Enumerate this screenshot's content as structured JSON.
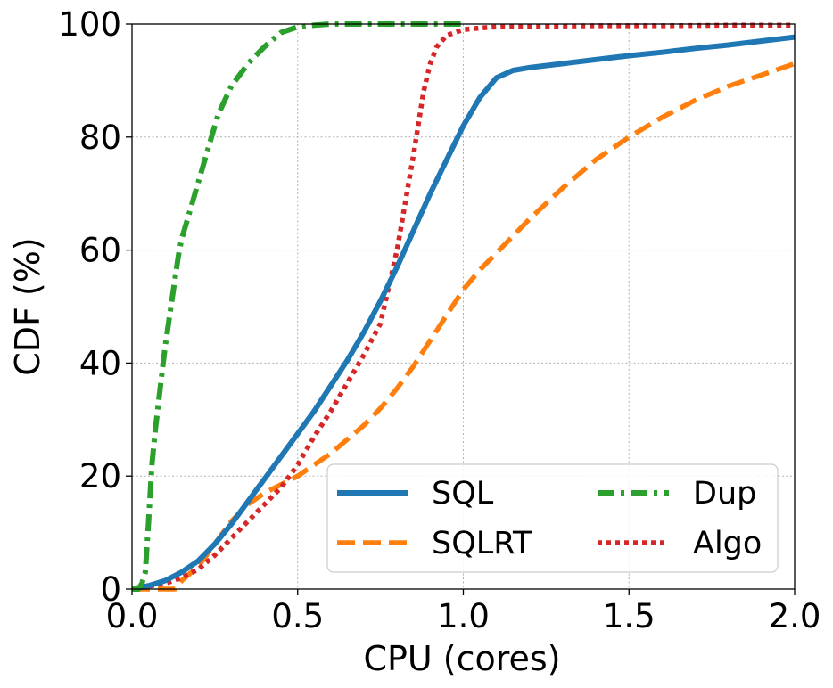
{
  "chart_data": {
    "type": "line",
    "title": "",
    "xlabel": "CPU (cores)",
    "ylabel": "CDF (%)",
    "xlim": [
      0,
      2.0
    ],
    "ylim": [
      0,
      100
    ],
    "xticks": [
      0.0,
      0.5,
      1.0,
      1.5,
      2.0
    ],
    "xtick_labels": [
      "0.0",
      "0.5",
      "1.0",
      "1.5",
      "2.0"
    ],
    "yticks": [
      0,
      20,
      40,
      60,
      80,
      100
    ],
    "ytick_labels": [
      "0",
      "20",
      "40",
      "60",
      "80",
      "100"
    ],
    "grid": true,
    "legend_position": "lower-right",
    "legend_columns": 2,
    "series": [
      {
        "name": "SQL",
        "color": "#1f77b4",
        "style": "solid",
        "x": [
          0,
          0.05,
          0.1,
          0.15,
          0.2,
          0.25,
          0.3,
          0.35,
          0.4,
          0.45,
          0.5,
          0.55,
          0.6,
          0.65,
          0.7,
          0.75,
          0.8,
          0.85,
          0.9,
          0.95,
          1.0,
          1.05,
          1.1,
          1.15,
          1.2,
          1.3,
          1.4,
          1.5,
          1.6,
          1.7,
          1.8,
          1.9,
          2.0
        ],
        "y": [
          0,
          0.6,
          1.5,
          3,
          5,
          8,
          11.5,
          15.5,
          19.5,
          23.5,
          27.5,
          31.5,
          36,
          40.5,
          45.5,
          51,
          57,
          63.5,
          70,
          76,
          82,
          87,
          90.5,
          91.8,
          92.3,
          93,
          93.7,
          94.4,
          95,
          95.7,
          96.3,
          97,
          97.7
        ]
      },
      {
        "name": "SQLRT",
        "color": "#ff7f0e",
        "style": "dashed",
        "x": [
          0,
          0.05,
          0.1,
          0.13,
          0.15,
          0.2,
          0.25,
          0.3,
          0.35,
          0.4,
          0.45,
          0.5,
          0.55,
          0.6,
          0.65,
          0.7,
          0.75,
          0.8,
          0.85,
          0.9,
          0.95,
          1.0,
          1.05,
          1.1,
          1.15,
          1.2,
          1.3,
          1.4,
          1.5,
          1.6,
          1.7,
          1.8,
          1.9,
          2.0
        ],
        "y": [
          0,
          0,
          0,
          0,
          1.5,
          4,
          8,
          12,
          15,
          17,
          18.5,
          20,
          22,
          24,
          26.5,
          29,
          32,
          35.5,
          39.5,
          44,
          48.5,
          53,
          56.5,
          59.5,
          62.5,
          65.5,
          71,
          76,
          80,
          83.5,
          86.5,
          89,
          91,
          93
        ]
      },
      {
        "name": "Dup",
        "color": "#2ca02c",
        "style": "dashdot",
        "x": [
          0,
          0.02,
          0.03,
          0.04,
          0.05,
          0.06,
          0.07,
          0.08,
          0.09,
          0.1,
          0.11,
          0.12,
          0.13,
          0.14,
          0.15,
          0.17,
          0.2,
          0.23,
          0.26,
          0.3,
          0.35,
          0.4,
          0.45,
          0.5,
          0.55,
          0.6,
          0.7,
          0.8,
          0.9,
          1.0
        ],
        "y": [
          0,
          0,
          1,
          3,
          12,
          22,
          28,
          33,
          38,
          43,
          47,
          51,
          55,
          59,
          62,
          66,
          72,
          78,
          84,
          89,
          93,
          96,
          98.5,
          99.5,
          99.8,
          100,
          100,
          100,
          100,
          100
        ]
      },
      {
        "name": "Algo",
        "color": "#d62728",
        "style": "dotted",
        "x": [
          0,
          0.05,
          0.1,
          0.15,
          0.2,
          0.25,
          0.3,
          0.35,
          0.4,
          0.45,
          0.5,
          0.55,
          0.6,
          0.65,
          0.7,
          0.75,
          0.8,
          0.85,
          0.88,
          0.9,
          0.92,
          0.95,
          1.0,
          1.05,
          1.1,
          1.2,
          1.4,
          1.6,
          1.8,
          2.0
        ],
        "y": [
          0,
          0.5,
          1,
          2,
          3.5,
          6,
          9,
          12,
          15,
          18,
          22,
          27,
          31.5,
          36.5,
          41.5,
          47,
          60,
          77,
          88,
          93,
          96,
          98,
          99,
          99.3,
          99.5,
          99.6,
          99.7,
          99.7,
          99.8,
          99.8
        ]
      }
    ]
  }
}
